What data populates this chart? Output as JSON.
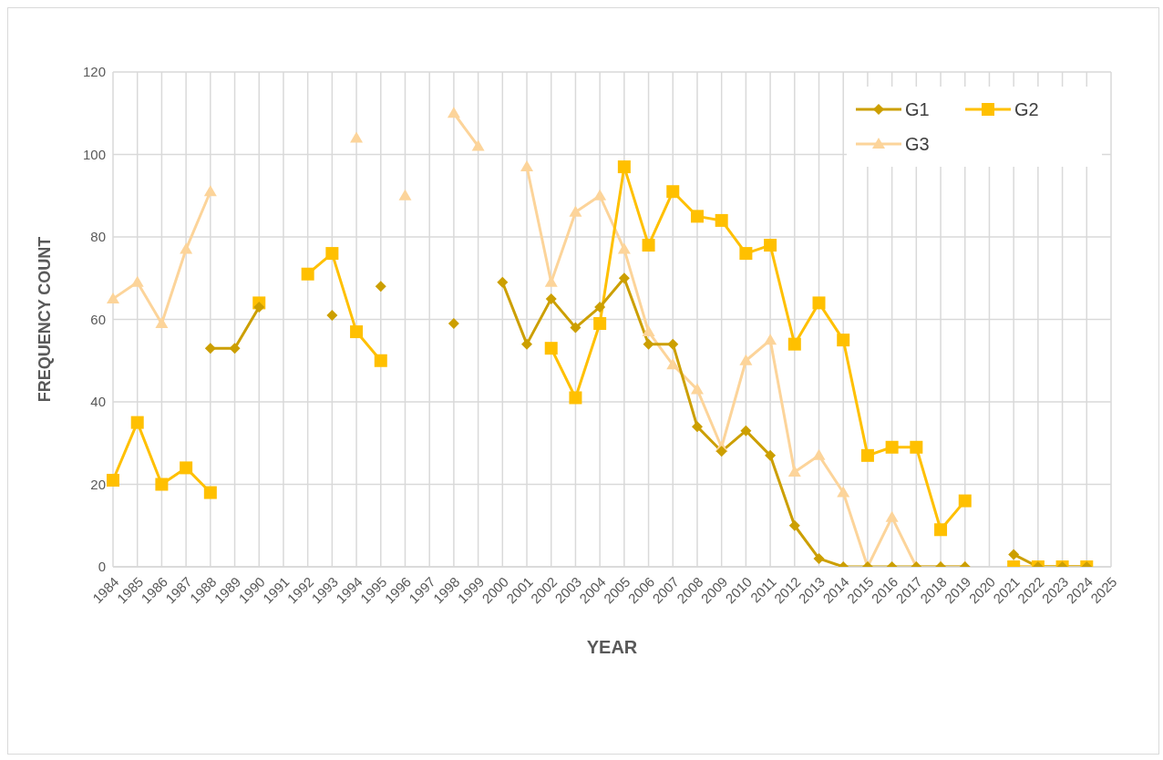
{
  "chart_data": {
    "type": "line",
    "xlabel": "YEAR",
    "ylabel": "FREQUENCY COUNT",
    "categories": [
      "1984",
      "1985",
      "1986",
      "1987",
      "1988",
      "1989",
      "1990",
      "1991",
      "1992",
      "1993",
      "1994",
      "1995",
      "1996",
      "1997",
      "1998",
      "1999",
      "2000",
      "2001",
      "2002",
      "2003",
      "2004",
      "2005",
      "2006",
      "2007",
      "2008",
      "2009",
      "2010",
      "2011",
      "2012",
      "2013",
      "2014",
      "2015",
      "2016",
      "2017",
      "2018",
      "2019",
      "2020",
      "2021",
      "2022",
      "2023",
      "2024",
      "2025"
    ],
    "series": [
      {
        "name": "G1",
        "color": "#cc9f00",
        "marker": "diamond",
        "values": [
          null,
          null,
          null,
          null,
          53,
          53,
          63,
          null,
          null,
          61,
          null,
          68,
          null,
          null,
          59,
          null,
          69,
          54,
          65,
          58,
          63,
          70,
          54,
          54,
          34,
          28,
          33,
          27,
          10,
          2,
          0,
          0,
          0,
          0,
          0,
          0,
          null,
          3,
          0,
          0,
          0,
          null
        ]
      },
      {
        "name": "G2",
        "color": "#ffc000",
        "marker": "square",
        "values": [
          21,
          35,
          20,
          24,
          18,
          null,
          64,
          null,
          71,
          76,
          57,
          50,
          null,
          null,
          null,
          null,
          null,
          null,
          53,
          41,
          59,
          97,
          78,
          91,
          85,
          84,
          76,
          78,
          54,
          64,
          55,
          27,
          29,
          29,
          9,
          16,
          null,
          0,
          0,
          0,
          0,
          null
        ]
      },
      {
        "name": "G3",
        "color": "#fcd49a",
        "marker": "triangle",
        "values": [
          65,
          69,
          59,
          77,
          91,
          null,
          null,
          null,
          null,
          null,
          104,
          null,
          90,
          null,
          110,
          102,
          null,
          97,
          69,
          86,
          90,
          77,
          57,
          49,
          43,
          29,
          50,
          55,
          23,
          27,
          18,
          0,
          12,
          0,
          0,
          0,
          null,
          0,
          0,
          0,
          0,
          null
        ]
      }
    ],
    "ylim": [
      0,
      120
    ],
    "yticks": [
      0,
      20,
      40,
      60,
      80,
      100,
      120
    ],
    "grid": true,
    "legend": "top right",
    "line_style": "solid"
  }
}
